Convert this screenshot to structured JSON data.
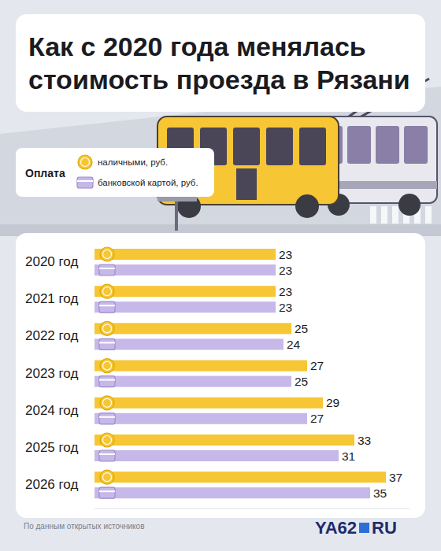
{
  "chart_data": {
    "type": "bar",
    "orientation": "horizontal",
    "title": "Как с 2020 года менялась стоимость проезда в Рязани",
    "legend_title": "Оплата",
    "categories": [
      "2020 год",
      "2021 год",
      "2022 год",
      "2023 год",
      "2024 год",
      "2025 год",
      "2026 год"
    ],
    "series": [
      {
        "name": "наличными, руб.",
        "color": "#f6c634",
        "values": [
          23,
          23,
          25,
          27,
          29,
          33,
          37
        ]
      },
      {
        "name": "банковской картой, руб.",
        "color": "#c6b8e8",
        "values": [
          23,
          23,
          24,
          25,
          27,
          31,
          35
        ]
      }
    ],
    "xlim": [
      0,
      40
    ],
    "data_labels": true,
    "tick_labels": "y",
    "legend": "upper left",
    "source": "По данным открытых источников",
    "logo": [
      "YA62",
      "RU"
    ]
  }
}
